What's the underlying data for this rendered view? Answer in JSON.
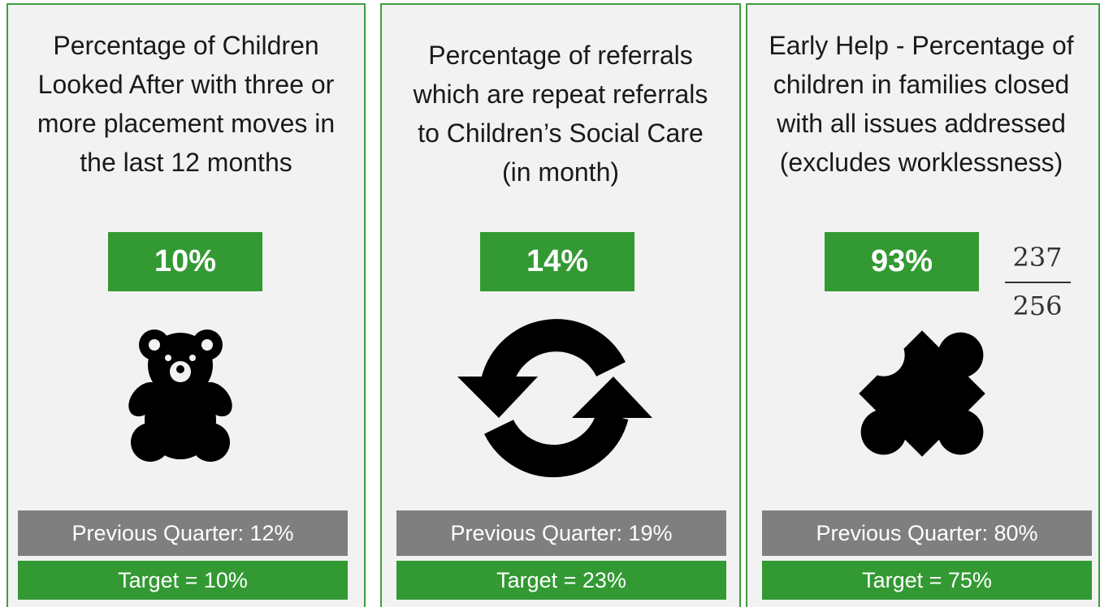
{
  "cards": [
    {
      "title": "Percentage of Children Looked After with three or more placement moves in the last 12 months",
      "value": "10%",
      "previous": "Previous Quarter: 12%",
      "target": "Target = 10%"
    },
    {
      "title": "Percentage of referrals which are repeat referrals to Children’s Social Care (in month)",
      "value": "14%",
      "previous": "Previous Quarter: 19%",
      "target": "Target = 23%"
    },
    {
      "title": "Early Help - Percentage of children in families closed with all issues addressed (excludes worklessness)",
      "value": "93%",
      "previous": "Previous Quarter: 80%",
      "target": "Target = 75%",
      "numerator": "237",
      "denominator": "256"
    }
  ]
}
